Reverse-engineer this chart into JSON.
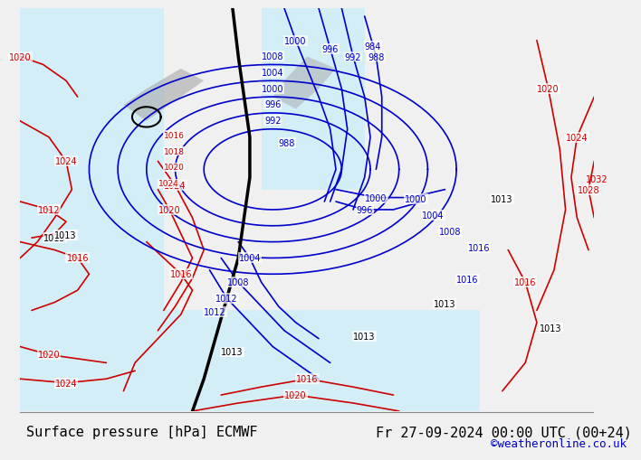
{
  "title_left": "Surface pressure [hPa] ECMWF",
  "title_right": "Fr 27-09-2024 00:00 UTC (00+24)",
  "copyright": "©weatheronline.co.uk",
  "bg_color": "#e8f4e8",
  "land_color": "#c8e6c8",
  "sea_color": "#d0e8f0",
  "gray_color": "#b0b0b0",
  "bottom_bar_color": "#f0f0f0",
  "title_fontsize": 11,
  "copyright_color": "#0000cc",
  "label_fontsize": 8
}
